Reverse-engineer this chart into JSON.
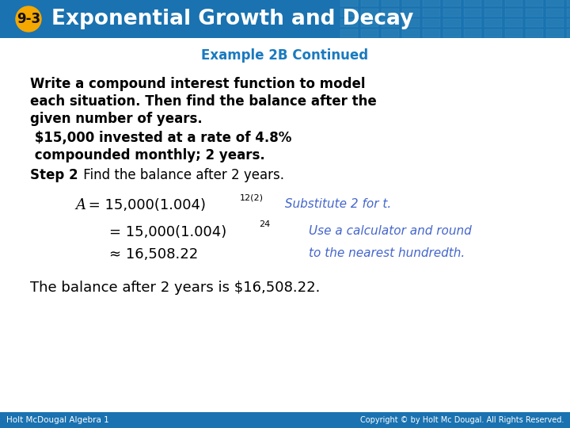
{
  "header_bg_color": "#1a72b0",
  "header_text_color": "#ffffff",
  "badge_color": "#f5a800",
  "badge_text": "9-3",
  "header_title": "Exponential Growth and Decay",
  "body_bg_color": "#ffffff",
  "example_title": "Example 2B Continued",
  "example_title_color": "#1a7abf",
  "body_text_color": "#000000",
  "blue_text_color": "#4466cc",
  "footer_bg_color": "#1a72b0",
  "footer_left": "Holt McDougal Algebra 1",
  "footer_right": "Copyright © by Holt Mc Dougal. All Rights Reserved.",
  "grid_color": "#4488bb"
}
